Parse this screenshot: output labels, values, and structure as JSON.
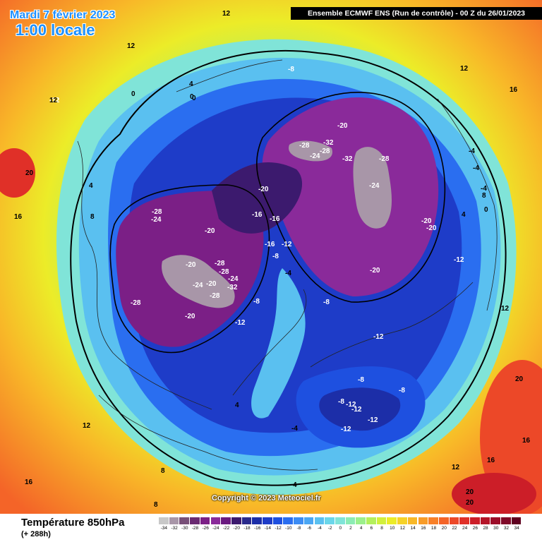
{
  "header": {
    "date_line": "Mardi 7 février 2023",
    "hour_line": "1:00 locale",
    "run_label": "Ensemble ECMWF ENS  (Run de contrôle)  -  00 Z du 26/01/2023"
  },
  "footer": {
    "variable_title": "Température 850hPa",
    "lead_time": "(+ 288h)",
    "copyright": "Copyright © 2023 Meteociel.fr"
  },
  "legend": {
    "unit_values": [
      -34,
      -32,
      -30,
      -28,
      -26,
      -24,
      -22,
      -20,
      -18,
      -16,
      -14,
      -12,
      -10,
      -8,
      -6,
      -4,
      -2,
      0,
      2,
      4,
      6,
      8,
      10,
      12,
      14,
      16,
      18,
      20,
      22,
      24,
      26,
      28,
      30,
      32,
      34
    ],
    "colors": [
      "#c8c8c8",
      "#a896a8",
      "#785078",
      "#6a2a72",
      "#7b1f86",
      "#8a2a9a",
      "#6a1a80",
      "#3c1a6e",
      "#2a2a8c",
      "#1c2ea8",
      "#1e3cc8",
      "#1e50e0",
      "#2a6ef0",
      "#3c8cf4",
      "#4aa6f4",
      "#5ac0f0",
      "#6ad6ea",
      "#80e4d8",
      "#8cecb4",
      "#9cf08c",
      "#b4f05c",
      "#d2f03c",
      "#ecec28",
      "#f6d228",
      "#f8b828",
      "#f89c28",
      "#f88028",
      "#f46428",
      "#ec4828",
      "#e03028",
      "#cc1e28",
      "#b41428",
      "#9c0c28",
      "#800828",
      "#600020"
    ]
  },
  "regions": [
    {
      "name": "polar-vortex-lobe-east",
      "color": "#7b1f86",
      "level": -24
    },
    {
      "name": "polar-vortex-lobe-west",
      "color": "#7b1f86",
      "level": -24
    },
    {
      "name": "siberia-cold-core",
      "color": "#c8c8c8",
      "level": -32
    },
    {
      "name": "canada-cold-core",
      "color": "#c8c8c8",
      "level": -32
    },
    {
      "name": "europe-cold-pool",
      "color": "#1e3cc8",
      "level": -12
    }
  ],
  "isotherm_labels": [
    {
      "text": "12"
    },
    {
      "text": "12"
    },
    {
      "text": "-12"
    },
    {
      "text": "-8"
    },
    {
      "text": "4"
    },
    {
      "text": "0"
    },
    {
      "text": "0"
    },
    {
      "text": "-20"
    },
    {
      "text": "-28"
    },
    {
      "text": "-32"
    },
    {
      "text": "-28"
    },
    {
      "text": "-24"
    },
    {
      "text": "-24"
    },
    {
      "text": "-28"
    },
    {
      "text": "-32"
    },
    {
      "text": "-20"
    },
    {
      "text": "-20"
    },
    {
      "text": "-16"
    },
    {
      "text": "-16"
    },
    {
      "text": "-20"
    },
    {
      "text": "-12"
    },
    {
      "text": "-16"
    },
    {
      "text": "-20"
    },
    {
      "text": "-28"
    },
    {
      "text": "-24"
    },
    {
      "text": "-20"
    },
    {
      "text": "-28"
    },
    {
      "text": "-24"
    },
    {
      "text": "-32"
    },
    {
      "text": "-28"
    },
    {
      "text": "-24"
    },
    {
      "text": "-20"
    },
    {
      "text": "-28"
    },
    {
      "text": "-28"
    },
    {
      "text": "-20"
    },
    {
      "text": "-12"
    },
    {
      "text": "-8"
    },
    {
      "text": "-8"
    },
    {
      "text": "-4"
    },
    {
      "text": "-8"
    },
    {
      "text": "-20"
    },
    {
      "text": "-12"
    },
    {
      "text": "-12"
    },
    {
      "text": "-12"
    },
    {
      "text": "-8"
    },
    {
      "text": "-8"
    },
    {
      "text": "-8"
    },
    {
      "text": "-12"
    },
    {
      "text": "-12"
    },
    {
      "text": "-12"
    },
    {
      "text": "-4"
    },
    {
      "text": "4"
    },
    {
      "text": "8"
    },
    {
      "text": "12"
    },
    {
      "text": "16"
    },
    {
      "text": "20"
    },
    {
      "text": "20"
    },
    {
      "text": "16"
    },
    {
      "text": "12"
    },
    {
      "text": "8"
    },
    {
      "text": "4"
    },
    {
      "text": "0"
    },
    {
      "text": "-4"
    },
    {
      "text": "-4"
    },
    {
      "text": "-4"
    },
    {
      "text": "0"
    },
    {
      "text": "4"
    },
    {
      "text": "8"
    },
    {
      "text": "12"
    },
    {
      "text": "16"
    },
    {
      "text": "20"
    },
    {
      "text": "20"
    },
    {
      "text": "16"
    },
    {
      "text": "12"
    },
    {
      "text": "8"
    },
    {
      "text": "4"
    },
    {
      "text": "12"
    },
    {
      "text": "16"
    }
  ]
}
